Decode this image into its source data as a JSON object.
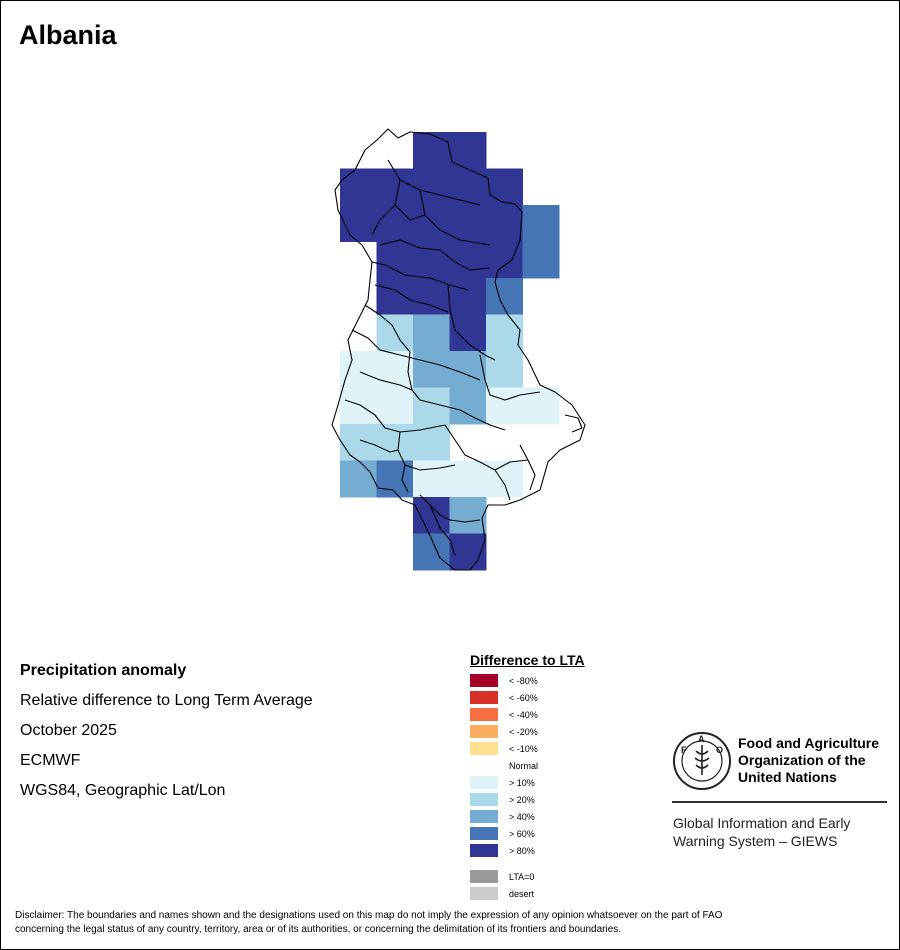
{
  "title": "Albania",
  "info": {
    "heading": "Precipitation anomaly",
    "line1": "Relative difference to Long Term Average",
    "line2": "October 2025",
    "line3": "ECMWF",
    "line4": "WGS84, Geographic Lat/Lon"
  },
  "legend": {
    "title": "Difference to LTA",
    "items": [
      {
        "label": "< -80%",
        "color": "#a50026"
      },
      {
        "label": "< -60%",
        "color": "#d73027"
      },
      {
        "label": "< -40%",
        "color": "#f46d43"
      },
      {
        "label": "< -20%",
        "color": "#fdae61"
      },
      {
        "label": "< -10%",
        "color": "#fee090"
      },
      {
        "label": "Normal",
        "color": "#ffffff"
      },
      {
        "label": "> 10%",
        "color": "#e0f3f8"
      },
      {
        "label": "> 20%",
        "color": "#abd9e9"
      },
      {
        "label": "> 40%",
        "color": "#74add1"
      },
      {
        "label": "> 60%",
        "color": "#4575b4"
      },
      {
        "label": "> 80%",
        "color": "#313695"
      }
    ],
    "extra": [
      {
        "label": "LTA=0",
        "color": "#999999"
      },
      {
        "label": "desert",
        "color": "#cccccc"
      }
    ]
  },
  "org": {
    "name_line1": "Food and Agriculture",
    "name_line2": "Organization of the",
    "name_line3": "United Nations",
    "system_line1": "Global Information and Early",
    "system_line2": "Warning System – GIEWS"
  },
  "disclaimer": {
    "line1": "Disclaimer: The boundaries and names shown and the designations used on this map do not imply the expression of any opinion whatsoever on the part of FAO",
    "line2": "concerning the legal status of any country, territory, area or of its authorities, or concerning the delimitation of its frontiers and boundaries."
  },
  "map": {
    "grid_cell_classes": [
      [
        null,
        null,
        null,
        null,
        null,
        null,
        null,
        null,
        null,
        null,
        null
      ],
      [
        null,
        null,
        null,
        null,
        null,
        null,
        null,
        null,
        null,
        null,
        null
      ],
      [
        null,
        null,
        null,
        null,
        null,
        null,
        null,
        null,
        null,
        null,
        null
      ],
      [
        null,
        null,
        null,
        null,
        null,
        null,
        null,
        null,
        null,
        null,
        null
      ],
      [
        null,
        null,
        null,
        null,
        null,
        null,
        null,
        null,
        null,
        null,
        null
      ],
      [
        null,
        null,
        null,
        null,
        null,
        null,
        null,
        null,
        null,
        null,
        null
      ],
      [
        null,
        null,
        null,
        null,
        null,
        null,
        null,
        null,
        null,
        null,
        null
      ],
      [
        null,
        null,
        null,
        null,
        null,
        null,
        null,
        null,
        null,
        null,
        null
      ],
      [
        null,
        null,
        null,
        null,
        null,
        null,
        null,
        null,
        null,
        null,
        null
      ],
      [
        null,
        null,
        null,
        null,
        null,
        null,
        null,
        null,
        null,
        null,
        null
      ],
      [
        null,
        null,
        null,
        null,
        null,
        null,
        null,
        null,
        null,
        null,
        null
      ],
      [
        null,
        null,
        null,
        null,
        null,
        null,
        null,
        null,
        null,
        null,
        null
      ],
      [
        null,
        null,
        null,
        null,
        null,
        null,
        null,
        null,
        null,
        null,
        null
      ]
    ]
  }
}
